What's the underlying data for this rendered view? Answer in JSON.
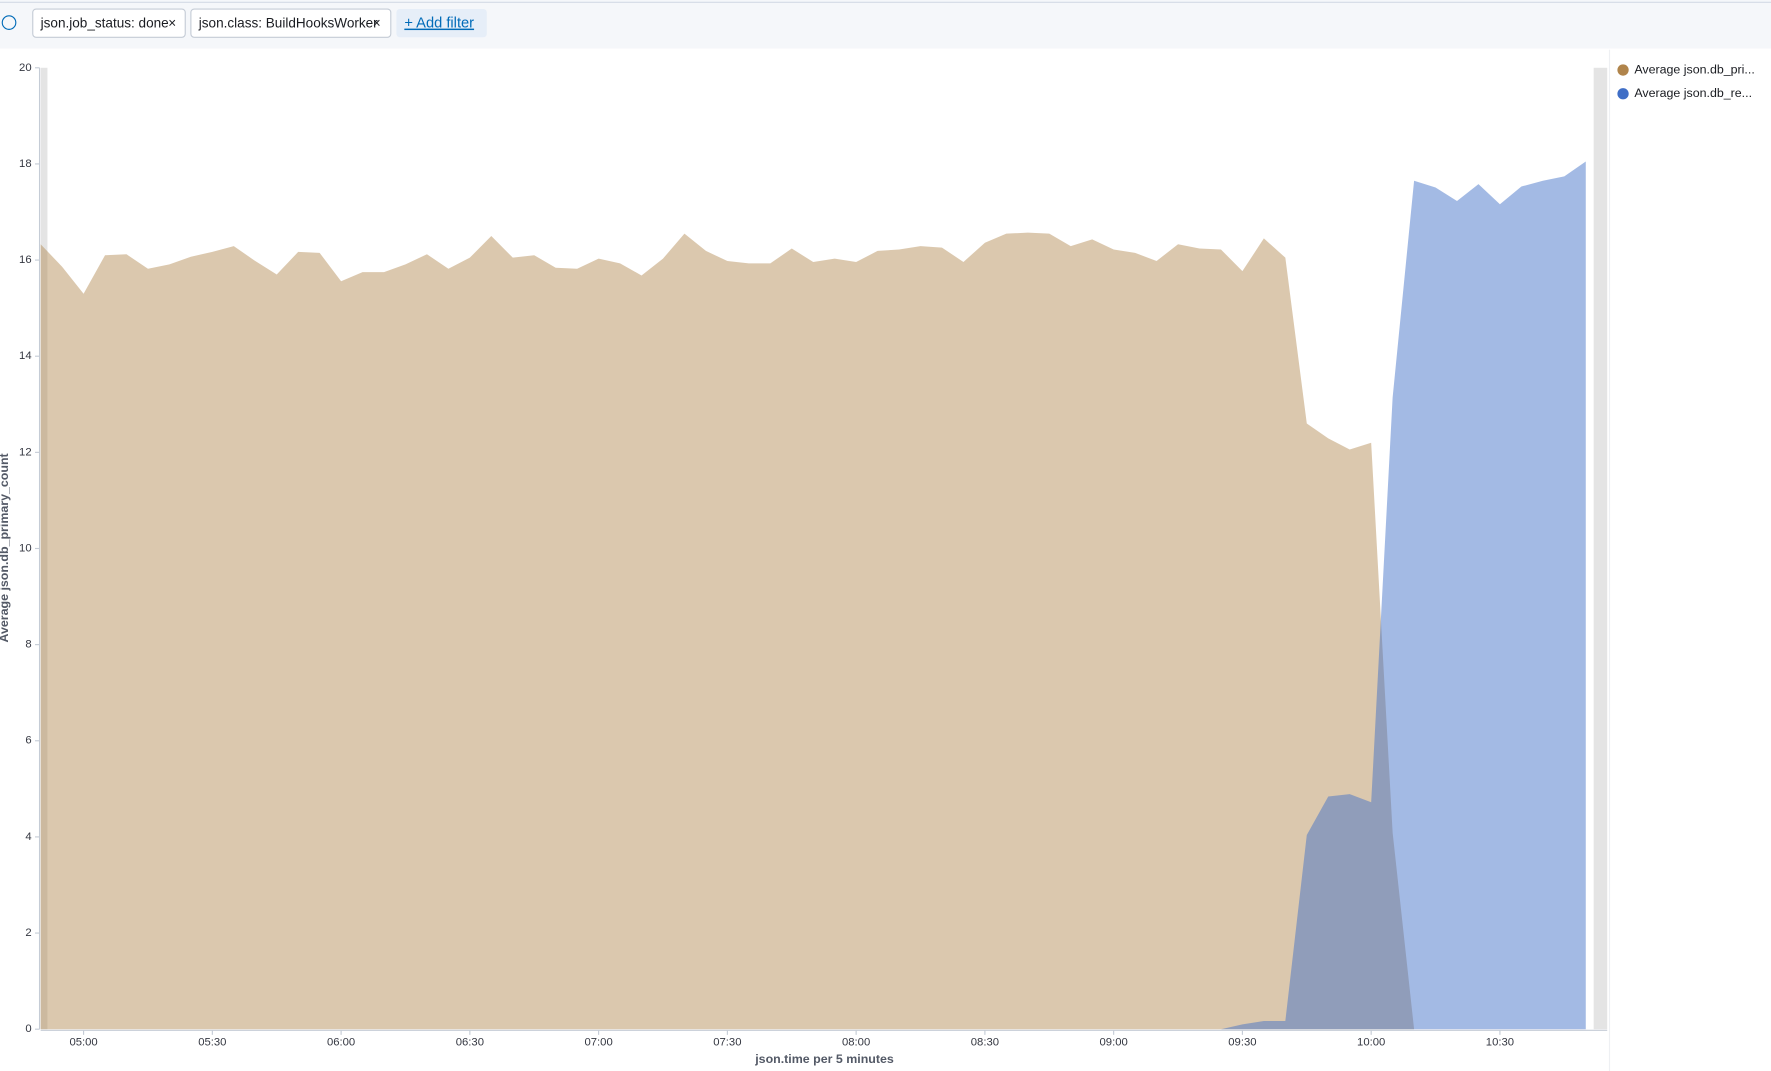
{
  "filters": [
    "json.job_status: done",
    "json.class: BuildHooksWorker"
  ],
  "add_filter": "+ Add filter",
  "chart_data": {
    "type": "area",
    "x_label": "json.time per 5 minutes",
    "y_label": "Average json.db_primary_count",
    "x": [
      "04:50",
      "04:55",
      "05:00",
      "05:05",
      "05:10",
      "05:15",
      "05:20",
      "05:25",
      "05:30",
      "05:35",
      "05:40",
      "05:45",
      "05:50",
      "05:55",
      "06:00",
      "06:05",
      "06:10",
      "06:15",
      "06:20",
      "06:25",
      "06:30",
      "06:35",
      "06:40",
      "06:45",
      "06:50",
      "06:55",
      "07:00",
      "07:05",
      "07:10",
      "07:15",
      "07:20",
      "07:25",
      "07:30",
      "07:35",
      "07:40",
      "07:45",
      "07:50",
      "07:55",
      "08:00",
      "08:05",
      "08:10",
      "08:15",
      "08:20",
      "08:25",
      "08:30",
      "08:35",
      "08:40",
      "08:45",
      "08:50",
      "08:55",
      "09:00",
      "09:05",
      "09:10",
      "09:15",
      "09:20",
      "09:25",
      "09:30",
      "09:35",
      "09:40",
      "09:45",
      "09:50",
      "09:55",
      "10:00",
      "10:05",
      "10:10",
      "10:15",
      "10:20",
      "10:25",
      "10:30",
      "10:35",
      "10:40",
      "10:45",
      "10:50"
    ],
    "series": [
      {
        "name": "Average json.db_pri...",
        "color": "#b0844b",
        "values": [
          16.33,
          15.86,
          15.3,
          16.1,
          16.12,
          15.82,
          15.91,
          16.07,
          16.17,
          16.29,
          15.98,
          15.7,
          16.17,
          16.15,
          15.56,
          15.75,
          15.75,
          15.91,
          16.12,
          15.82,
          16.05,
          16.5,
          16.05,
          16.1,
          15.84,
          15.82,
          16.03,
          15.93,
          15.68,
          16.03,
          16.55,
          16.19,
          15.98,
          15.93,
          15.93,
          16.24,
          15.96,
          16.03,
          15.96,
          16.19,
          16.22,
          16.29,
          16.26,
          15.96,
          16.36,
          16.55,
          16.57,
          16.55,
          16.29,
          16.43,
          16.22,
          16.15,
          15.98,
          16.33,
          16.24,
          16.22,
          15.77,
          16.45,
          16.05,
          12.6,
          12.29,
          12.06,
          12.2,
          4.09,
          0,
          0,
          0,
          0,
          0,
          0,
          0,
          0,
          0
        ]
      },
      {
        "name": "Average json.db_re...",
        "color": "#3f6ec6",
        "values": [
          0,
          0,
          0,
          0,
          0,
          0,
          0,
          0,
          0,
          0,
          0,
          0,
          0,
          0,
          0,
          0,
          0,
          0,
          0,
          0,
          0,
          0,
          0,
          0,
          0,
          0,
          0,
          0,
          0,
          0,
          0,
          0,
          0,
          0,
          0,
          0,
          0,
          0,
          0,
          0,
          0,
          0,
          0,
          0,
          0,
          0,
          0,
          0,
          0,
          0,
          0,
          0,
          0,
          0,
          0,
          0,
          0.1,
          0.17,
          0.17,
          4.04,
          4.84,
          4.89,
          4.72,
          13.14,
          17.65,
          17.51,
          17.23,
          17.58,
          17.16,
          17.53,
          17.65,
          17.74,
          18.05
        ]
      }
    ],
    "xlim": [
      "04:50",
      "10:55"
    ],
    "xticks": [
      "05:00",
      "05:30",
      "06:00",
      "06:30",
      "07:00",
      "07:30",
      "08:00",
      "08:30",
      "09:00",
      "09:30",
      "10:00",
      "10:30"
    ],
    "ylim": [
      0,
      20
    ],
    "yticks": [
      0,
      2,
      4,
      6,
      8,
      10,
      12,
      14,
      16,
      18,
      20
    ],
    "legend": "right"
  }
}
